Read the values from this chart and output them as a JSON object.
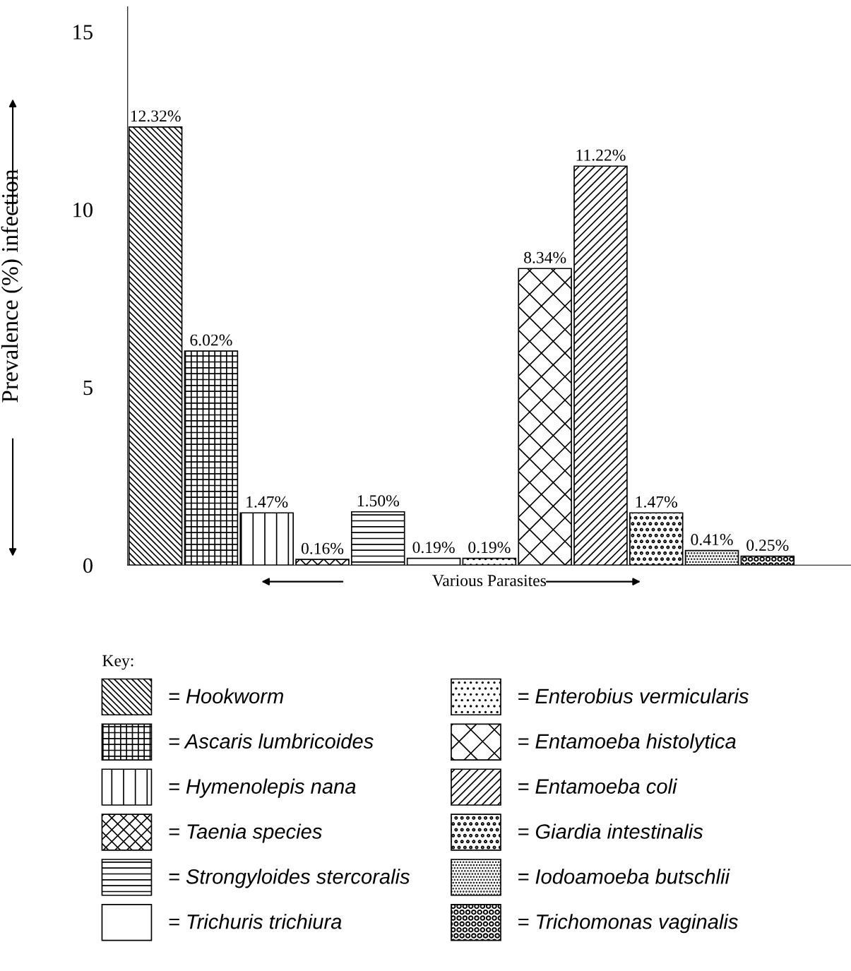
{
  "chart_data": {
    "type": "bar",
    "ylabel": "Prevalence (%) infection",
    "xlabel": "Various Parasites",
    "categories": [
      null,
      null,
      null,
      null,
      null,
      null,
      null,
      null,
      null,
      null,
      null,
      null,
      null
    ],
    "series": [
      {
        "name": "= Hookworm",
        "color": "#000000",
        "values": [
          12.32,
          null,
          null,
          null,
          null,
          null,
          null,
          null,
          null,
          null,
          null,
          null,
          null
        ],
        "value_labels": [
          "12.32%",
          null,
          null,
          null,
          null,
          null,
          null,
          null,
          null,
          null,
          null,
          null,
          null
        ]
      },
      {
        "name": "= Ascaris lumbricoides",
        "color": "#000000",
        "values": [
          null,
          6.02,
          null,
          null,
          null,
          null,
          null,
          null,
          null,
          null,
          null,
          null,
          null
        ],
        "value_labels": [
          null,
          "6.02%",
          null,
          null,
          null,
          null,
          null,
          null,
          null,
          null,
          null,
          null,
          null
        ]
      },
      {
        "name": "= Hymenolepis nana",
        "color": "#000000",
        "values": [
          null,
          null,
          1.47,
          null,
          null,
          null,
          null,
          null,
          null,
          null,
          null,
          null,
          null
        ],
        "value_labels": [
          null,
          null,
          "1.47%",
          null,
          null,
          null,
          null,
          null,
          null,
          null,
          null,
          null,
          null
        ]
      },
      {
        "name": "= Taenia species",
        "color": "#000000",
        "values": [
          null,
          null,
          null,
          0.16,
          null,
          null,
          null,
          null,
          null,
          null,
          null,
          null,
          null
        ],
        "value_labels": [
          null,
          null,
          null,
          "0.16%",
          null,
          null,
          null,
          null,
          null,
          null,
          null,
          null,
          null
        ]
      },
      {
        "name": "= Strongyloides stercoralis",
        "color": "#000000",
        "values": [
          null,
          null,
          null,
          null,
          1.5,
          null,
          null,
          null,
          null,
          null,
          null,
          null,
          null
        ],
        "value_labels": [
          null,
          null,
          null,
          null,
          "1.50%",
          null,
          null,
          null,
          null,
          null,
          null,
          null,
          null
        ]
      },
      {
        "name": "= Trichuris trichiura",
        "color": "#000000",
        "values": [
          null,
          null,
          null,
          null,
          null,
          0.19,
          null,
          null,
          null,
          null,
          null,
          null,
          null
        ],
        "value_labels": [
          null,
          null,
          null,
          null,
          null,
          "0.19%",
          null,
          null,
          null,
          null,
          null,
          null,
          null
        ]
      },
      {
        "name": "= Enterobius vermicularis",
        "color": "#000000",
        "values": [
          null,
          null,
          null,
          null,
          null,
          null,
          0.19,
          null,
          null,
          null,
          null,
          null,
          null
        ],
        "value_labels": [
          null,
          null,
          null,
          null,
          null,
          null,
          "0.19%",
          null,
          null,
          null,
          null,
          null,
          null
        ]
      },
      {
        "name": "= Entamoeba histolytica",
        "color": "#000000",
        "values": [
          null,
          null,
          null,
          null,
          null,
          null,
          null,
          8.34,
          null,
          null,
          null,
          null,
          null
        ],
        "value_labels": [
          null,
          null,
          null,
          null,
          null,
          null,
          null,
          "8.34%",
          null,
          null,
          null,
          null,
          null
        ]
      },
      {
        "name": "= Entamoeba coli",
        "color": "#000000",
        "values": [
          null,
          null,
          null,
          null,
          null,
          null,
          null,
          null,
          11.22,
          null,
          null,
          null,
          null
        ],
        "value_labels": [
          null,
          null,
          null,
          null,
          null,
          null,
          null,
          null,
          "11.22%",
          null,
          null,
          null,
          null
        ]
      },
      {
        "name": "= Giardia intestinalis",
        "color": "#000000",
        "values": [
          null,
          null,
          null,
          null,
          null,
          null,
          null,
          null,
          null,
          1.47,
          null,
          null,
          null
        ],
        "value_labels": [
          null,
          null,
          null,
          null,
          null,
          null,
          null,
          null,
          null,
          "1.47%",
          null,
          null,
          null
        ]
      },
      {
        "name": "= Iodoamoeba butschlii",
        "color": "#000000",
        "values": [
          null,
          null,
          null,
          null,
          null,
          null,
          null,
          null,
          null,
          null,
          0.41,
          null,
          null
        ],
        "value_labels": [
          null,
          null,
          null,
          null,
          null,
          null,
          null,
          null,
          null,
          null,
          "0.41%",
          null,
          null
        ]
      },
      {
        "name": "= Trichomonas vaginalis",
        "color": "#000000",
        "values": [
          null,
          null,
          null,
          null,
          null,
          null,
          null,
          null,
          null,
          null,
          null,
          0.25,
          null
        ],
        "value_labels": [
          null,
          null,
          null,
          null,
          null,
          null,
          null,
          null,
          null,
          null,
          null,
          "0.25%",
          null
        ]
      }
    ],
    "ylim": [
      0,
      15.7
    ],
    "yticks": [
      0,
      5,
      10,
      15
    ],
    "legend_title": "Key:",
    "legend": "bottom",
    "grid": false
  }
}
